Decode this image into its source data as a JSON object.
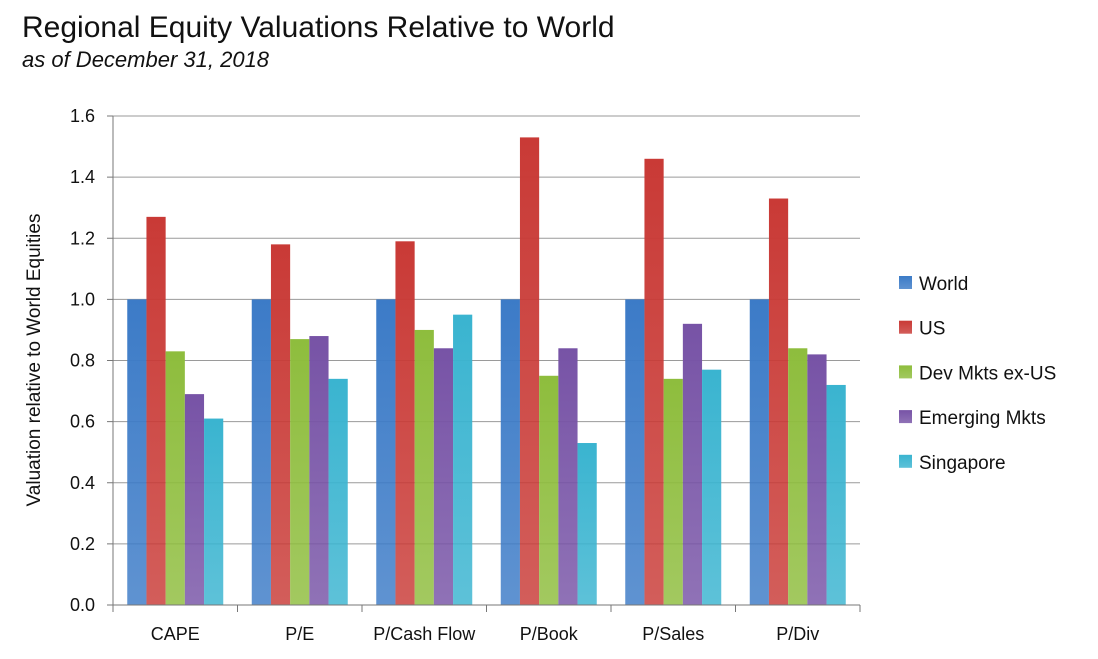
{
  "title": "Regional Equity Valuations Relative to World",
  "subtitle": "as of December 31, 2018",
  "chart_data": {
    "type": "bar",
    "title": "Regional Equity Valuations Relative to World",
    "subtitle": "as of December 31, 2018",
    "xlabel": "",
    "ylabel": "Valuation relative to World Equities",
    "ylim": [
      0,
      1.6
    ],
    "yticks": [
      "0.0",
      "0.2",
      "0.4",
      "0.6",
      "0.8",
      "1.0",
      "1.2",
      "1.4",
      "1.6"
    ],
    "grid": true,
    "legend_position": "right",
    "categories": [
      "CAPE",
      "P/E",
      "P/Cash Flow",
      "P/Book",
      "P/Sales",
      "P/Div"
    ],
    "series": [
      {
        "name": "World",
        "color": "#3c7bc7",
        "values": [
          1.0,
          1.0,
          1.0,
          1.0,
          1.0,
          1.0
        ]
      },
      {
        "name": "US",
        "color": "#c93a36",
        "values": [
          1.27,
          1.18,
          1.19,
          1.53,
          1.46,
          1.33
        ]
      },
      {
        "name": "Dev Mkts ex-US",
        "color": "#8ebd3d",
        "values": [
          0.83,
          0.87,
          0.9,
          0.75,
          0.74,
          0.84
        ]
      },
      {
        "name": "Emerging Mkts",
        "color": "#7753a6",
        "values": [
          0.69,
          0.88,
          0.84,
          0.84,
          0.92,
          0.82
        ]
      },
      {
        "name": "Singapore",
        "color": "#3ab4d0",
        "values": [
          0.61,
          0.74,
          0.95,
          0.53,
          0.77,
          0.72
        ]
      }
    ]
  }
}
